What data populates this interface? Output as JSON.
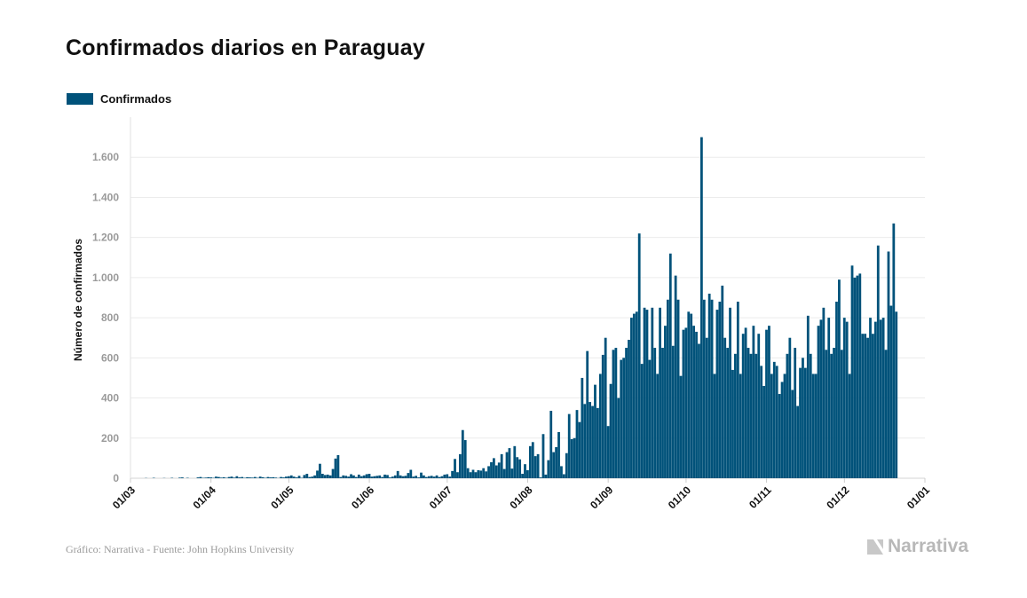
{
  "title": "Confirmados diarios en Paraguay",
  "legend": {
    "label": "Confirmados",
    "color": "#00527a"
  },
  "source": "Gráfico: Narrativa - Fuente: John Hopkins University",
  "brand": "Narrativa",
  "chart_data": {
    "type": "bar",
    "ylabel": "Número de confirmados",
    "xlabel": "",
    "ylim": [
      0,
      1800
    ],
    "y_ticks": [
      0,
      200,
      400,
      600,
      800,
      1000,
      1200,
      1400,
      1600
    ],
    "y_tick_labels": [
      "0",
      "200",
      "400",
      "600",
      "800",
      "1.000",
      "1.200",
      "1.400",
      "1.600"
    ],
    "x_tick_labels": [
      "01/03",
      "01/04",
      "01/05",
      "01/06",
      "01/07",
      "01/08",
      "01/09",
      "01/10",
      "01/11",
      "01/12",
      "01/01"
    ],
    "x_tick_dates": [
      "2020-03-01",
      "2020-04-01",
      "2020-05-01",
      "2020-06-01",
      "2020-07-01",
      "2020-08-01",
      "2020-09-01",
      "2020-10-01",
      "2020-11-01",
      "2020-12-01",
      "2021-01-01"
    ],
    "grid": true,
    "legend_position": "top-left",
    "color": "#00527a",
    "series": [
      {
        "name": "Confirmados",
        "x": [
          "2020-03-07",
          "2020-03-08",
          "2020-03-09",
          "2020-03-10",
          "2020-03-11",
          "2020-03-12",
          "2020-03-13",
          "2020-03-14",
          "2020-03-15",
          "2020-03-16",
          "2020-03-17",
          "2020-03-18",
          "2020-03-19",
          "2020-03-20",
          "2020-03-21",
          "2020-03-22",
          "2020-03-23",
          "2020-03-24",
          "2020-03-25",
          "2020-03-26",
          "2020-03-27",
          "2020-03-28",
          "2020-03-29",
          "2020-03-30",
          "2020-03-31",
          "2020-04-01",
          "2020-04-02",
          "2020-04-03",
          "2020-04-04",
          "2020-04-05",
          "2020-04-06",
          "2020-04-07",
          "2020-04-08",
          "2020-04-09",
          "2020-04-10",
          "2020-04-11",
          "2020-04-12",
          "2020-04-13",
          "2020-04-14",
          "2020-04-15",
          "2020-04-16",
          "2020-04-17",
          "2020-04-18",
          "2020-04-19",
          "2020-04-20",
          "2020-04-21",
          "2020-04-22",
          "2020-04-23",
          "2020-04-24",
          "2020-04-25",
          "2020-04-26",
          "2020-04-27",
          "2020-04-28",
          "2020-04-29",
          "2020-04-30",
          "2020-05-01",
          "2020-05-02",
          "2020-05-03",
          "2020-05-04",
          "2020-05-05",
          "2020-05-06",
          "2020-05-07",
          "2020-05-08",
          "2020-05-09",
          "2020-05-10",
          "2020-05-11",
          "2020-05-12",
          "2020-05-13",
          "2020-05-14",
          "2020-05-15",
          "2020-05-16",
          "2020-05-17",
          "2020-05-18",
          "2020-05-19",
          "2020-05-20",
          "2020-05-21",
          "2020-05-22",
          "2020-05-23",
          "2020-05-24",
          "2020-05-25",
          "2020-05-26",
          "2020-05-27",
          "2020-05-28",
          "2020-05-29",
          "2020-05-30",
          "2020-05-31",
          "2020-06-01",
          "2020-06-02",
          "2020-06-03",
          "2020-06-04",
          "2020-06-05",
          "2020-06-06",
          "2020-06-07",
          "2020-06-08",
          "2020-06-09",
          "2020-06-10",
          "2020-06-11",
          "2020-06-12",
          "2020-06-13",
          "2020-06-14",
          "2020-06-15",
          "2020-06-16",
          "2020-06-17",
          "2020-06-18",
          "2020-06-19",
          "2020-06-20",
          "2020-06-21",
          "2020-06-22",
          "2020-06-23",
          "2020-06-24",
          "2020-06-25",
          "2020-06-26",
          "2020-06-27",
          "2020-06-28",
          "2020-06-29",
          "2020-06-30",
          "2020-07-01",
          "2020-07-02",
          "2020-07-03",
          "2020-07-04",
          "2020-07-05",
          "2020-07-06",
          "2020-07-07",
          "2020-07-08",
          "2020-07-09",
          "2020-07-10",
          "2020-07-11",
          "2020-07-12",
          "2020-07-13",
          "2020-07-14",
          "2020-07-15",
          "2020-07-16",
          "2020-07-17",
          "2020-07-18",
          "2020-07-19",
          "2020-07-20",
          "2020-07-21",
          "2020-07-22",
          "2020-07-23",
          "2020-07-24",
          "2020-07-25",
          "2020-07-26",
          "2020-07-27",
          "2020-07-28",
          "2020-07-29",
          "2020-07-30",
          "2020-07-31",
          "2020-08-01",
          "2020-08-02",
          "2020-08-03",
          "2020-08-04",
          "2020-08-05",
          "2020-08-06",
          "2020-08-07",
          "2020-08-08",
          "2020-08-09",
          "2020-08-10",
          "2020-08-11",
          "2020-08-12",
          "2020-08-13",
          "2020-08-14",
          "2020-08-15",
          "2020-08-16",
          "2020-08-17",
          "2020-08-18",
          "2020-08-19",
          "2020-08-20",
          "2020-08-21",
          "2020-08-22",
          "2020-08-23",
          "2020-08-24",
          "2020-08-25",
          "2020-08-26",
          "2020-08-27",
          "2020-08-28",
          "2020-08-29",
          "2020-08-30",
          "2020-08-31",
          "2020-09-01",
          "2020-09-02",
          "2020-09-03",
          "2020-09-04",
          "2020-09-05",
          "2020-09-06",
          "2020-09-07",
          "2020-09-08",
          "2020-09-09",
          "2020-09-10",
          "2020-09-11",
          "2020-09-12",
          "2020-09-13",
          "2020-09-14",
          "2020-09-15",
          "2020-09-16",
          "2020-09-17",
          "2020-09-18",
          "2020-09-19",
          "2020-09-20",
          "2020-09-21",
          "2020-09-22",
          "2020-09-23",
          "2020-09-24",
          "2020-09-25",
          "2020-09-26",
          "2020-09-27",
          "2020-09-28",
          "2020-09-29",
          "2020-09-30",
          "2020-10-01",
          "2020-10-02",
          "2020-10-03",
          "2020-10-04",
          "2020-10-05",
          "2020-10-06",
          "2020-10-07",
          "2020-10-08",
          "2020-10-09",
          "2020-10-10",
          "2020-10-11",
          "2020-10-12",
          "2020-10-13",
          "2020-10-14",
          "2020-10-15",
          "2020-10-16",
          "2020-10-17",
          "2020-10-18",
          "2020-10-19",
          "2020-10-20",
          "2020-10-21",
          "2020-10-22",
          "2020-10-23",
          "2020-10-24",
          "2020-10-25",
          "2020-10-26",
          "2020-10-27",
          "2020-10-28",
          "2020-10-29",
          "2020-10-30",
          "2020-10-31",
          "2020-11-01",
          "2020-11-02",
          "2020-11-03",
          "2020-11-04",
          "2020-11-05",
          "2020-11-06",
          "2020-11-07",
          "2020-11-08",
          "2020-11-09",
          "2020-11-10",
          "2020-11-11",
          "2020-11-12",
          "2020-11-13",
          "2020-11-14",
          "2020-11-15",
          "2020-11-16",
          "2020-11-17",
          "2020-11-18",
          "2020-11-19",
          "2020-11-20",
          "2020-11-21",
          "2020-11-22",
          "2020-11-23",
          "2020-11-24",
          "2020-11-25",
          "2020-11-26",
          "2020-11-27",
          "2020-11-28",
          "2020-11-29",
          "2020-11-30",
          "2020-12-01",
          "2020-12-02",
          "2020-12-03",
          "2020-12-04",
          "2020-12-05",
          "2020-12-06",
          "2020-12-07",
          "2020-12-08",
          "2020-12-09",
          "2020-12-10",
          "2020-12-11",
          "2020-12-12",
          "2020-12-13",
          "2020-12-14",
          "2020-12-15",
          "2020-12-16",
          "2020-12-17",
          "2020-12-18",
          "2020-12-19",
          "2020-12-20",
          "2020-12-21"
        ],
        "values": [
          1,
          0,
          0,
          2,
          0,
          0,
          0,
          1,
          0,
          0,
          2,
          0,
          0,
          3,
          4,
          0,
          2,
          0,
          0,
          0,
          4,
          6,
          2,
          3,
          5,
          4,
          2,
          8,
          6,
          3,
          5,
          2,
          6,
          8,
          3,
          10,
          4,
          6,
          2,
          5,
          4,
          3,
          6,
          2,
          8,
          5,
          2,
          6,
          4,
          5,
          3,
          1,
          6,
          4,
          8,
          10,
          14,
          8,
          4,
          12,
          2,
          16,
          22,
          6,
          8,
          14,
          38,
          72,
          22,
          16,
          18,
          14,
          46,
          98,
          115,
          6,
          14,
          12,
          8,
          20,
          14,
          6,
          18,
          10,
          14,
          20,
          22,
          8,
          10,
          12,
          14,
          6,
          18,
          16,
          4,
          8,
          14,
          36,
          14,
          10,
          12,
          26,
          42,
          8,
          12,
          4,
          28,
          14,
          6,
          10,
          12,
          8,
          14,
          6,
          10,
          18,
          20,
          8,
          36,
          96,
          30,
          120,
          240,
          190,
          50,
          30,
          42,
          30,
          40,
          38,
          50,
          34,
          60,
          80,
          100,
          64,
          78,
          120,
          46,
          130,
          150,
          48,
          160,
          105,
          94,
          22,
          70,
          40,
          160,
          180,
          110,
          120,
          4,
          220,
          18,
          90,
          336,
          130,
          155,
          230,
          60,
          20,
          125,
          320,
          195,
          200,
          340,
          280,
          500,
          370,
          634,
          380,
          360,
          466,
          350,
          520,
          615,
          700,
          260,
          470,
          640,
          650,
          400,
          590,
          600,
          650,
          690,
          800,
          820,
          830,
          1220,
          570,
          850,
          840,
          590,
          850,
          650,
          520,
          850,
          650,
          760,
          890,
          1120,
          660,
          1010,
          890,
          510,
          740,
          750,
          830,
          820,
          760,
          730,
          670,
          1700,
          890,
          700,
          920,
          890,
          520,
          840,
          880,
          960,
          700,
          650,
          850,
          540,
          620,
          880,
          520,
          720,
          750,
          650,
          620,
          760,
          620,
          720,
          560,
          460,
          740,
          760,
          520,
          580,
          560,
          420,
          480,
          520,
          620,
          700,
          440,
          650,
          360,
          550,
          600,
          550,
          810,
          620,
          520,
          520,
          760,
          790,
          850,
          640,
          800,
          620,
          650,
          880,
          990,
          640,
          800,
          780,
          520,
          1060,
          1000,
          1010,
          1020,
          720,
          720,
          700,
          800,
          720,
          780,
          1160,
          790,
          800,
          640,
          1130,
          860,
          1270,
          830
        ]
      }
    ]
  }
}
